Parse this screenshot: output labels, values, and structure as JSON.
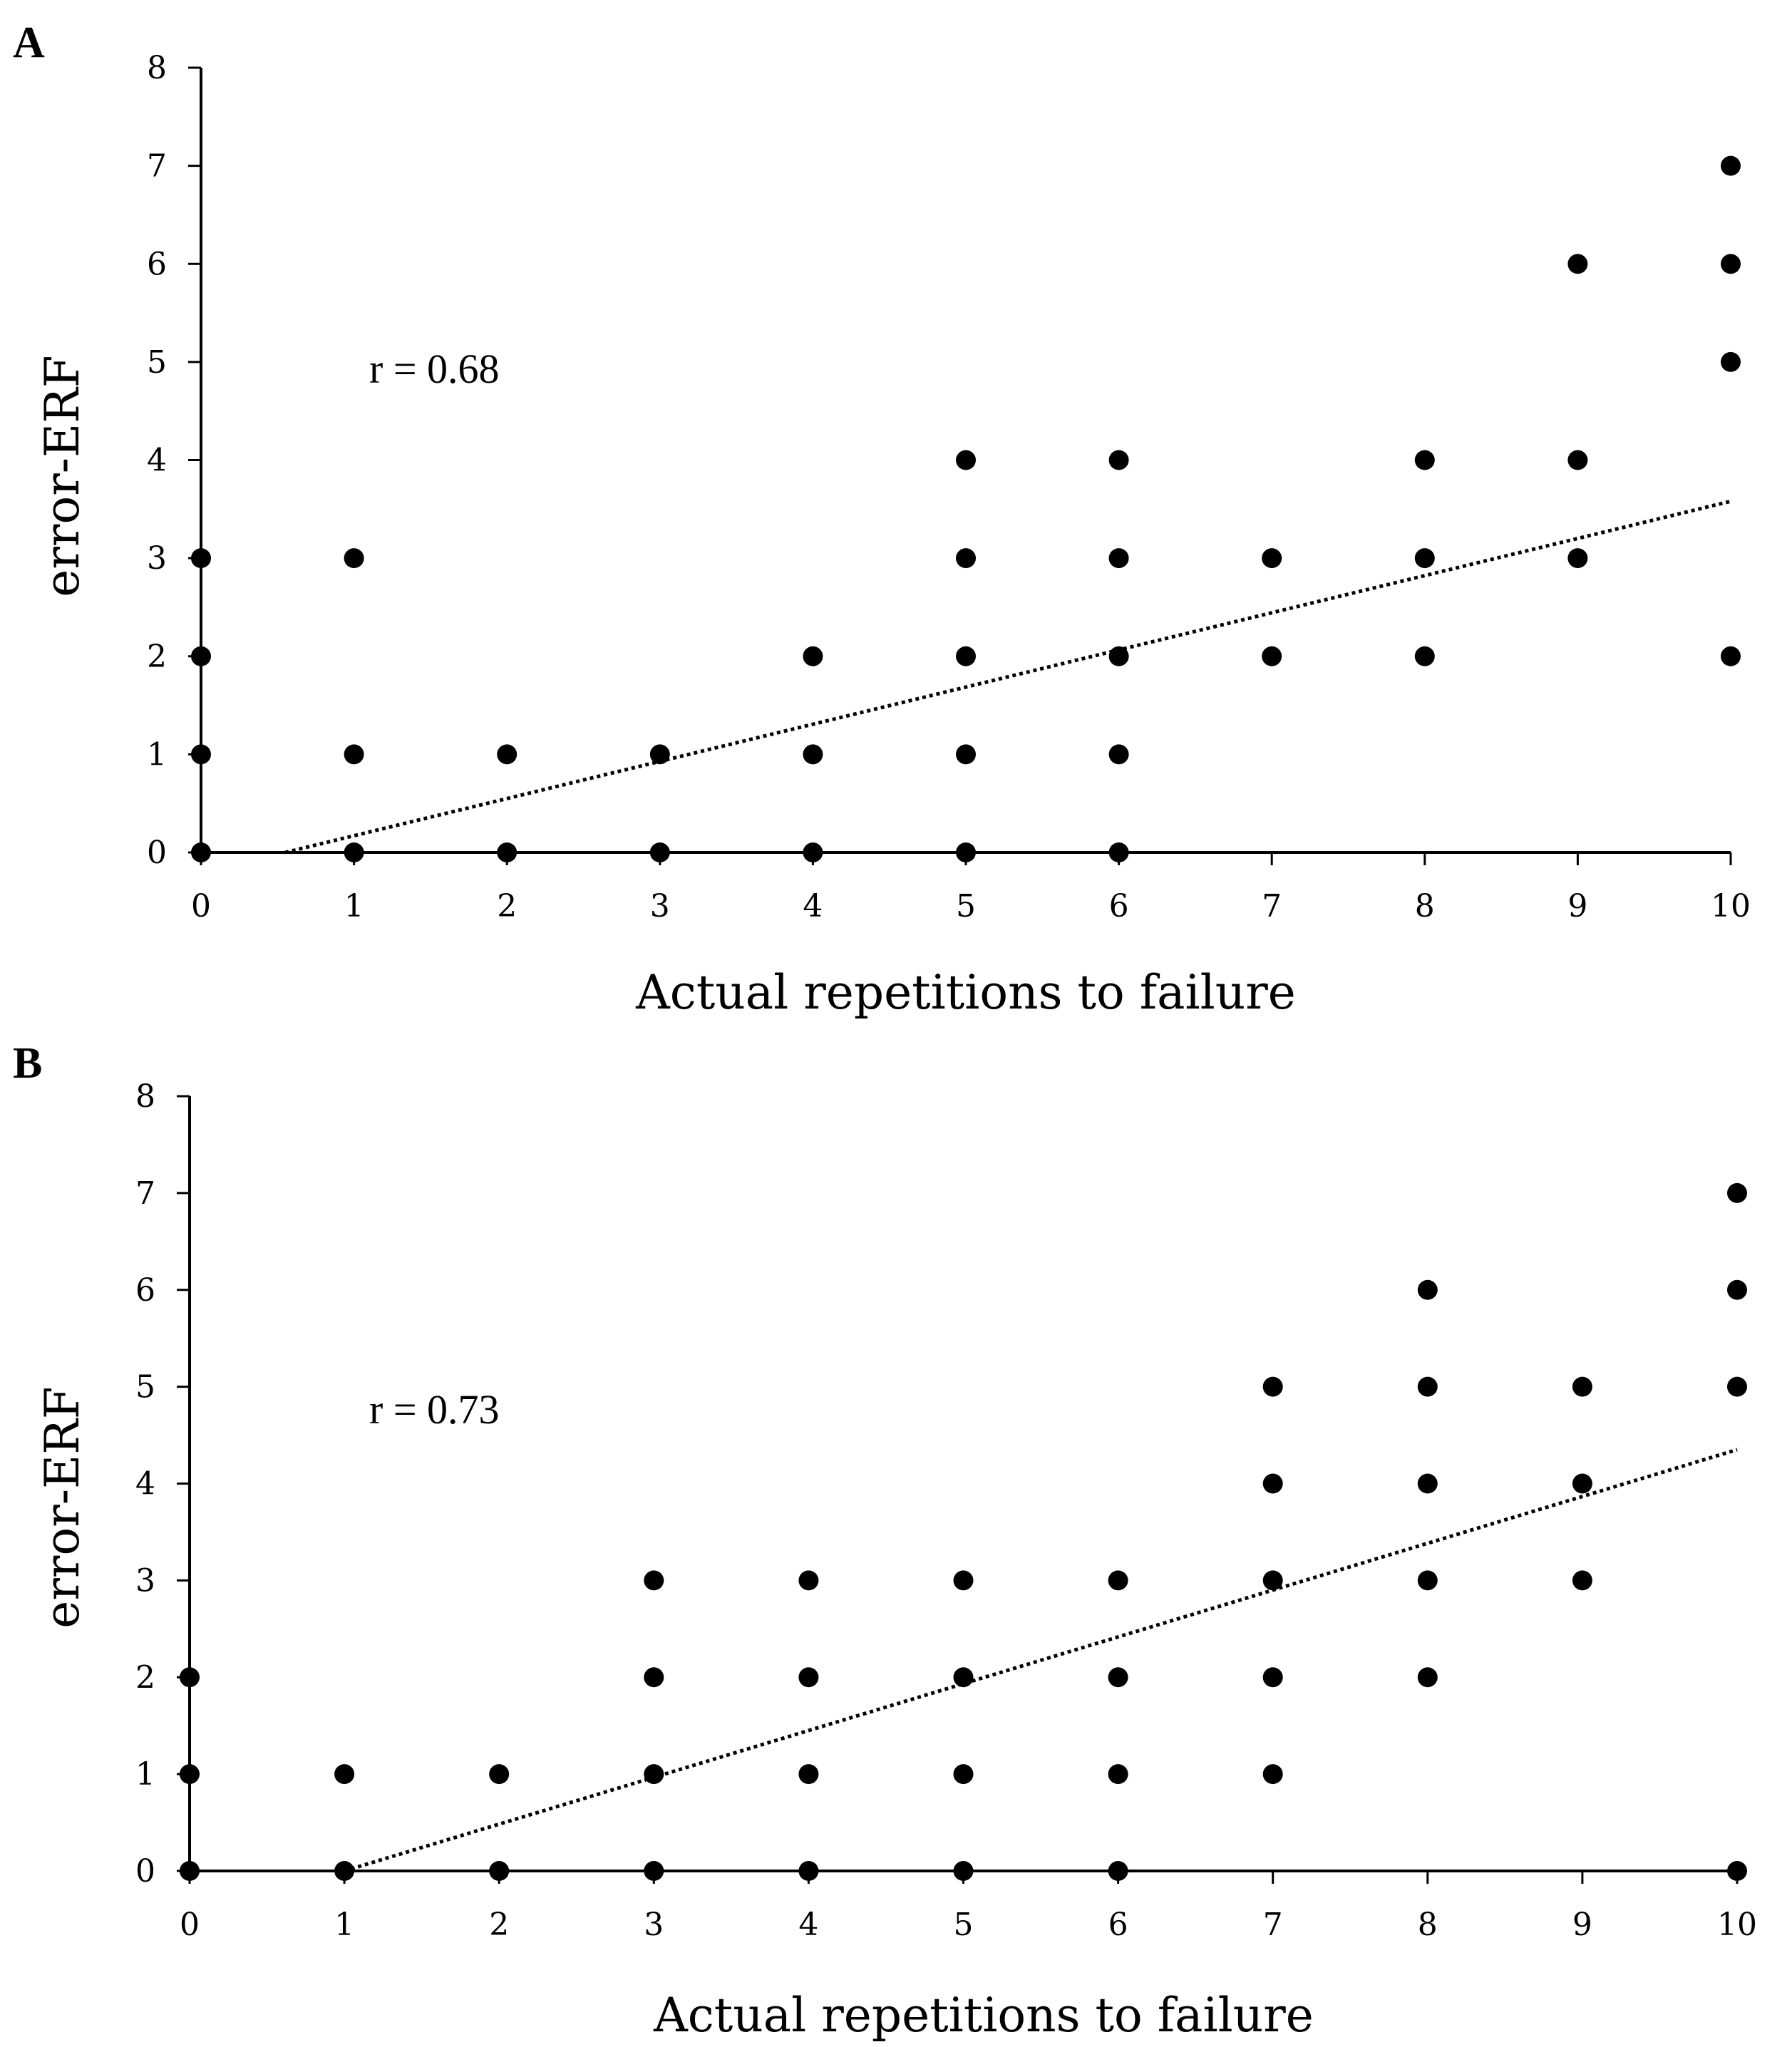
{
  "chart_data": [
    {
      "type": "scatter",
      "panel_label": "A",
      "xlabel": "Actual repetitions to failure",
      "ylabel": "error-ERF",
      "xlim": [
        0,
        10
      ],
      "ylim": [
        0,
        8
      ],
      "x_ticks": [
        "0",
        "1",
        "2",
        "3",
        "4",
        "5",
        "6",
        "7",
        "8",
        "9",
        "10"
      ],
      "y_ticks": [
        "0",
        "1",
        "2",
        "3",
        "4",
        "5",
        "6",
        "7",
        "8"
      ],
      "annotation": "r = 0.68",
      "trendline": {
        "style": "dotted",
        "x": [
          0.55,
          10
        ],
        "y": [
          0,
          3.58
        ]
      },
      "points": [
        [
          0,
          0
        ],
        [
          0,
          1
        ],
        [
          0,
          2
        ],
        [
          0,
          3
        ],
        [
          1,
          0
        ],
        [
          1,
          1
        ],
        [
          1,
          3
        ],
        [
          2,
          0
        ],
        [
          2,
          1
        ],
        [
          3,
          0
        ],
        [
          3,
          1
        ],
        [
          4,
          0
        ],
        [
          4,
          1
        ],
        [
          4,
          2
        ],
        [
          5,
          0
        ],
        [
          5,
          1
        ],
        [
          5,
          2
        ],
        [
          5,
          3
        ],
        [
          5,
          4
        ],
        [
          6,
          0
        ],
        [
          6,
          1
        ],
        [
          6,
          2
        ],
        [
          6,
          3
        ],
        [
          6,
          4
        ],
        [
          7,
          2
        ],
        [
          7,
          3
        ],
        [
          8,
          2
        ],
        [
          8,
          3
        ],
        [
          8,
          4
        ],
        [
          9,
          3
        ],
        [
          9,
          4
        ],
        [
          9,
          6
        ],
        [
          10,
          2
        ],
        [
          10,
          5
        ],
        [
          10,
          6
        ],
        [
          10,
          7
        ]
      ]
    },
    {
      "type": "scatter",
      "panel_label": "B",
      "xlabel": "Actual repetitions to failure",
      "ylabel": "error-ERF",
      "xlim": [
        0,
        10
      ],
      "ylim": [
        0,
        8
      ],
      "x_ticks": [
        "0",
        "1",
        "2",
        "3",
        "4",
        "5",
        "6",
        "7",
        "8",
        "9",
        "10"
      ],
      "y_ticks": [
        "0",
        "1",
        "2",
        "3",
        "4",
        "5",
        "6",
        "7",
        "8"
      ],
      "annotation": "r = 0.73",
      "trendline": {
        "style": "dotted",
        "x": [
          1,
          10
        ],
        "y": [
          0,
          4.35
        ]
      },
      "points": [
        [
          0,
          0
        ],
        [
          0,
          1
        ],
        [
          0,
          2
        ],
        [
          1,
          0
        ],
        [
          1,
          1
        ],
        [
          2,
          0
        ],
        [
          2,
          1
        ],
        [
          3,
          0
        ],
        [
          3,
          1
        ],
        [
          3,
          2
        ],
        [
          3,
          3
        ],
        [
          4,
          0
        ],
        [
          4,
          1
        ],
        [
          4,
          2
        ],
        [
          4,
          3
        ],
        [
          5,
          0
        ],
        [
          5,
          1
        ],
        [
          5,
          2
        ],
        [
          5,
          3
        ],
        [
          6,
          0
        ],
        [
          6,
          1
        ],
        [
          6,
          2
        ],
        [
          6,
          3
        ],
        [
          7,
          1
        ],
        [
          7,
          2
        ],
        [
          7,
          3
        ],
        [
          7,
          4
        ],
        [
          7,
          5
        ],
        [
          8,
          2
        ],
        [
          8,
          3
        ],
        [
          8,
          4
        ],
        [
          8,
          5
        ],
        [
          8,
          6
        ],
        [
          9,
          3
        ],
        [
          9,
          4
        ],
        [
          9,
          5
        ],
        [
          10,
          0
        ],
        [
          10,
          5
        ],
        [
          10,
          6
        ],
        [
          10,
          7
        ]
      ]
    }
  ]
}
